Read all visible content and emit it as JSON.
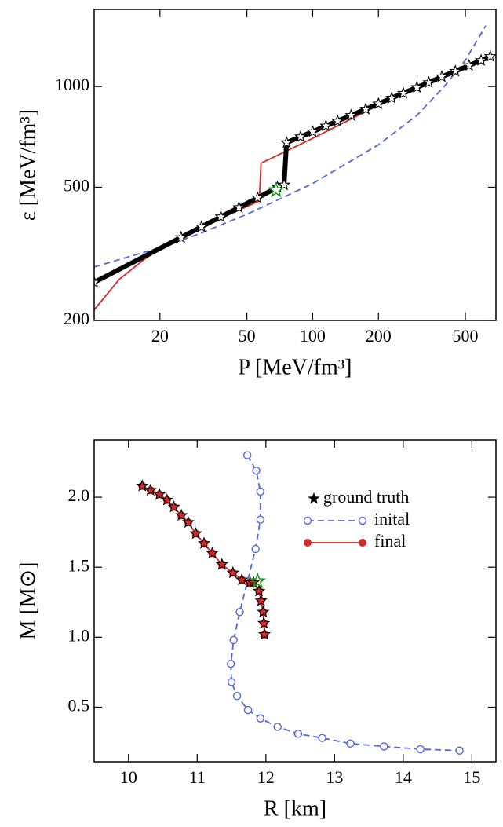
{
  "chart_data": [
    {
      "type": "line",
      "xscale": "log",
      "yscale": "log",
      "xlabel": "P [MeV/fm³]",
      "ylabel": "ε [MeV/fm³]",
      "xlim": [
        10,
        690
      ],
      "ylim": [
        200,
        1700
      ],
      "xticks": [
        20,
        50,
        100,
        200,
        500
      ],
      "yticks": [
        200,
        500,
        1000
      ],
      "series": [
        {
          "color": "#5566dd",
          "line_style": "dashed",
          "x": [
            10,
            20,
            30,
            50,
            100,
            200,
            300,
            400,
            500,
            620
          ],
          "values": [
            289,
            330,
            362,
            415,
            513,
            670,
            820,
            1000,
            1200,
            1520
          ]
        },
        {
          "color": "#000000",
          "line_style": "thick",
          "marker": "star",
          "x": [
            10,
            25,
            31,
            38,
            46,
            56,
            69,
            74,
            76,
            88,
            100,
            115,
            130,
            150,
            175,
            200,
            230,
            260,
            300,
            340,
            390,
            450,
            520,
            590,
            650
          ],
          "values": [
            260,
            354,
            381,
            408,
            435,
            465,
            500,
            508,
            680,
            708,
            733,
            763,
            789,
            820,
            856,
            888,
            924,
            955,
            994,
            1028,
            1070,
            1111,
            1156,
            1197,
            1230
          ]
        },
        {
          "color": "#d42a2a",
          "line_style": "solid",
          "x": [
            10,
            13,
            17,
            22,
            30,
            40,
            57,
            58,
            100,
            200,
            400,
            650
          ],
          "values": [
            215,
            265,
            305,
            340,
            375,
            410,
            455,
            590,
            700,
            880,
            1070,
            1235
          ]
        }
      ],
      "highlight": {
        "x": 68,
        "y": 490,
        "color": "#1a9e1a"
      }
    },
    {
      "type": "line",
      "xlabel": "R [km]",
      "ylabel": "M [M⊙]",
      "xlim": [
        9.5,
        15.35
      ],
      "ylim": [
        0.11,
        2.41
      ],
      "xticks": [
        10,
        11,
        12,
        13,
        14,
        15
      ],
      "yticks": [
        0.5,
        {
          "value": 1.0,
          "label": "1.0"
        },
        1.5,
        {
          "value": 2.0,
          "label": "2.0"
        }
      ],
      "legend": "upper right",
      "series": [
        {
          "name": "ground truth",
          "color": "#000000",
          "marker": "star",
          "line_style": "none",
          "x": [
            10.2,
            10.32,
            10.45,
            10.56,
            10.66,
            10.77,
            10.87,
            10.98,
            11.1,
            11.22,
            11.36,
            11.52,
            11.65,
            11.77,
            11.82,
            11.9,
            11.93,
            11.96,
            11.97,
            11.98
          ],
          "values": [
            2.08,
            2.05,
            2.02,
            1.98,
            1.93,
            1.87,
            1.82,
            1.74,
            1.67,
            1.6,
            1.52,
            1.46,
            1.41,
            1.39,
            1.39,
            1.33,
            1.26,
            1.18,
            1.1,
            1.02
          ]
        },
        {
          "name": "inital",
          "color": "#5566dd",
          "marker": "open-circle",
          "line_style": "dashed",
          "x": [
            11.73,
            11.86,
            11.92,
            11.92,
            11.85,
            11.62,
            11.53,
            11.49,
            11.5,
            11.58,
            11.74,
            11.92,
            12.17,
            12.47,
            12.82,
            13.23,
            13.72,
            14.25,
            14.82
          ],
          "values": [
            2.3,
            2.19,
            2.04,
            1.84,
            1.63,
            1.18,
            0.98,
            0.81,
            0.68,
            0.58,
            0.48,
            0.42,
            0.36,
            0.31,
            0.28,
            0.24,
            0.22,
            0.2,
            0.19
          ]
        },
        {
          "name": "final",
          "color": "#d42a2a",
          "marker": "circle",
          "line_style": "solid",
          "x": [
            10.2,
            10.32,
            10.45,
            10.56,
            10.66,
            10.77,
            10.87,
            10.98,
            11.1,
            11.22,
            11.36,
            11.52,
            11.65,
            11.77,
            11.82,
            11.9,
            11.93,
            11.96,
            11.97,
            11.98
          ],
          "values": [
            2.08,
            2.05,
            2.02,
            1.98,
            1.93,
            1.87,
            1.82,
            1.74,
            1.67,
            1.6,
            1.52,
            1.46,
            1.41,
            1.39,
            1.39,
            1.33,
            1.26,
            1.18,
            1.1,
            1.02
          ]
        }
      ],
      "highlight": {
        "x": 11.88,
        "y": 1.4,
        "color": "#1a9e1a"
      }
    }
  ]
}
